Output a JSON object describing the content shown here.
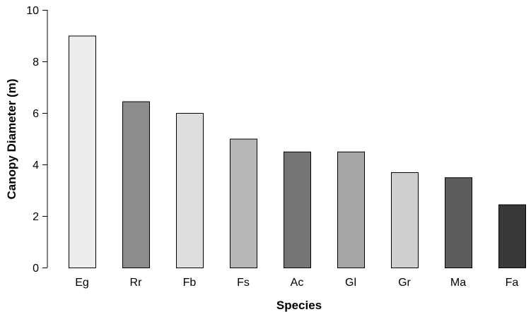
{
  "chart_data": {
    "type": "bar",
    "title": "",
    "xlabel": "Species",
    "ylabel": "Canopy Diameter (m)",
    "ylim": [
      0,
      10
    ],
    "yticks": [
      0,
      2,
      4,
      6,
      8,
      10
    ],
    "grid": false,
    "legend": "none",
    "categories": [
      "Eg",
      "Rr",
      "Fb",
      "Fs",
      "Ac",
      "Gl",
      "Gr",
      "Ma",
      "Fa"
    ],
    "values": [
      9.0,
      6.45,
      6.0,
      5.0,
      4.5,
      4.5,
      3.7,
      3.5,
      2.45
    ],
    "colors": [
      "#ededed",
      "#8c8c8c",
      "#dedede",
      "#b8b8b8",
      "#757575",
      "#a6a6a6",
      "#cfcfcf",
      "#5c5c5c",
      "#383838"
    ]
  }
}
